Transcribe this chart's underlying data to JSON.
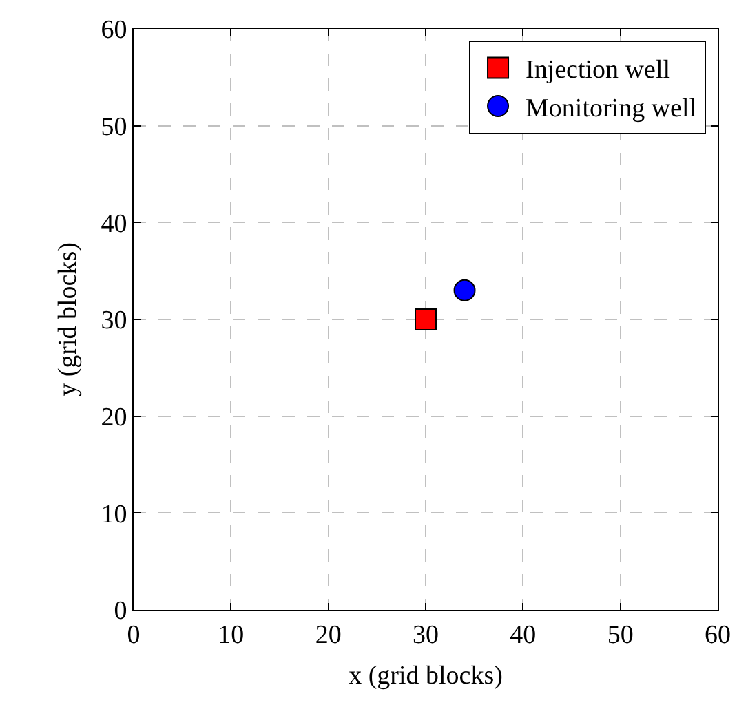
{
  "chart_data": {
    "type": "scatter",
    "xlabel": "x (grid blocks)",
    "ylabel": "y (grid blocks)",
    "xlim": [
      0,
      60
    ],
    "ylim": [
      0,
      60
    ],
    "xticks": [
      0,
      10,
      20,
      30,
      40,
      50,
      60
    ],
    "yticks": [
      0,
      10,
      20,
      30,
      40,
      50,
      60
    ],
    "grid": true,
    "legend": "top right",
    "series": [
      {
        "name": "Injection well",
        "color": "#ff0000",
        "marker": "square",
        "x": [
          30
        ],
        "values": [
          30
        ]
      },
      {
        "name": "Monitoring well",
        "color": "#0000ff",
        "marker": "circle",
        "x": [
          34
        ],
        "values": [
          33
        ]
      }
    ]
  }
}
